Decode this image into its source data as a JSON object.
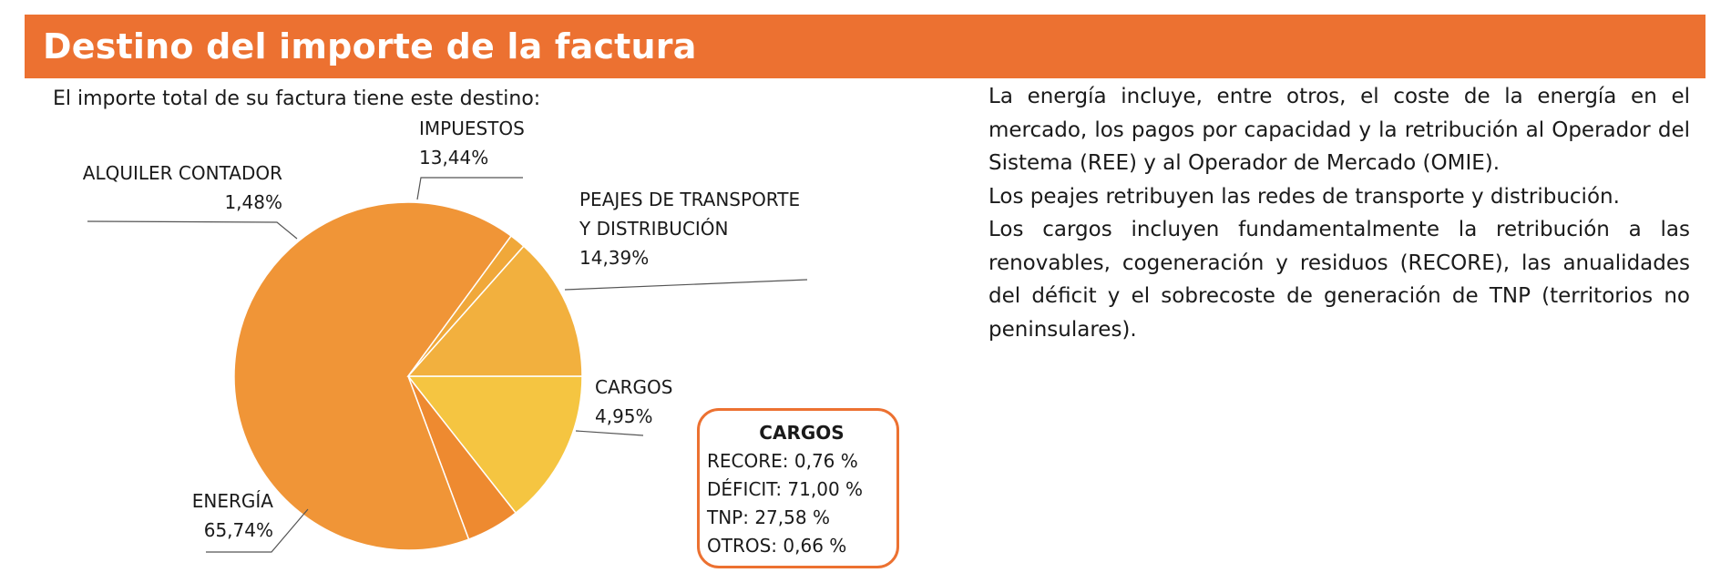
{
  "header": {
    "title": "Destino del importe de la factura"
  },
  "intro": "El importe total de su factura tiene este destino:",
  "colors": {
    "accent": "#ec7131",
    "slices": [
      "#f5c541",
      "#f0a83a",
      "#ee8a30",
      "#f09537",
      "#f2b03e",
      "#f3b73f"
    ]
  },
  "chart_data": {
    "type": "pie",
    "slices": [
      {
        "label_lines": [
          "PEAJES DE TRANSPORTE",
          "Y DISTRIBUCIÓN"
        ],
        "value": 14.39,
        "value_label": "14,39%"
      },
      {
        "label_lines": [
          "CARGOS"
        ],
        "value": 4.95,
        "value_label": "4,95%"
      },
      {
        "label_lines": [
          "ENERGÍA"
        ],
        "value": 65.74,
        "value_label": "65,74%"
      },
      {
        "label_lines": [
          "ALQUILER CONTADOR"
        ],
        "value": 1.48,
        "value_label": "1,48%"
      },
      {
        "label_lines": [
          "IMPUESTOS"
        ],
        "value": 13.44,
        "value_label": "13,44%"
      }
    ]
  },
  "cargos_box": {
    "title": "CARGOS",
    "rows": [
      "RECORE: 0,76 %",
      "DÉFICIT: 71,00 %",
      "TNP: 27,58 %",
      "OTROS: 0,66 %"
    ]
  },
  "description": [
    "La energía incluye, entre otros, el coste de la energía en el mercado, los pagos por capacidad y la retribución al Operador del Sistema (REE) y al Operador de Mercado (OMIE).",
    "Los peajes retribuyen las redes de transporte y distribución.",
    "Los cargos incluyen fundamentalmente la retribución a las renovables, cogeneración y residuos (RECORE), las anualidades del déficit y el sobrecoste de generación de TNP (territorios no peninsulares)."
  ]
}
